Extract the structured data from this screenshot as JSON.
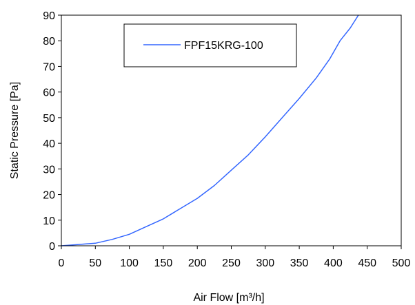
{
  "chart_data": {
    "type": "line",
    "title": "",
    "xlabel": "Air Flow  [m³/h]",
    "ylabel": "Static Pressure [Pa]",
    "xlim": [
      0,
      500
    ],
    "ylim": [
      0,
      90
    ],
    "xticks": [
      0,
      50,
      100,
      150,
      200,
      250,
      300,
      350,
      400,
      450,
      500
    ],
    "yticks": [
      0,
      10,
      20,
      30,
      40,
      50,
      60,
      70,
      80,
      90
    ],
    "grid": false,
    "legend_position": "top-center",
    "series": [
      {
        "name": "FPF15KRG-100",
        "color": "#3366ff",
        "x": [
          0,
          25,
          50,
          75,
          100,
          125,
          150,
          175,
          200,
          225,
          250,
          275,
          300,
          325,
          350,
          375,
          395,
          410,
          425,
          437
        ],
        "y": [
          0,
          0.5,
          1,
          2.5,
          4.5,
          7.5,
          10.5,
          14.5,
          18.5,
          23.5,
          29.5,
          35.5,
          42.5,
          50,
          57.5,
          65.5,
          73,
          80,
          85,
          90
        ]
      }
    ]
  }
}
